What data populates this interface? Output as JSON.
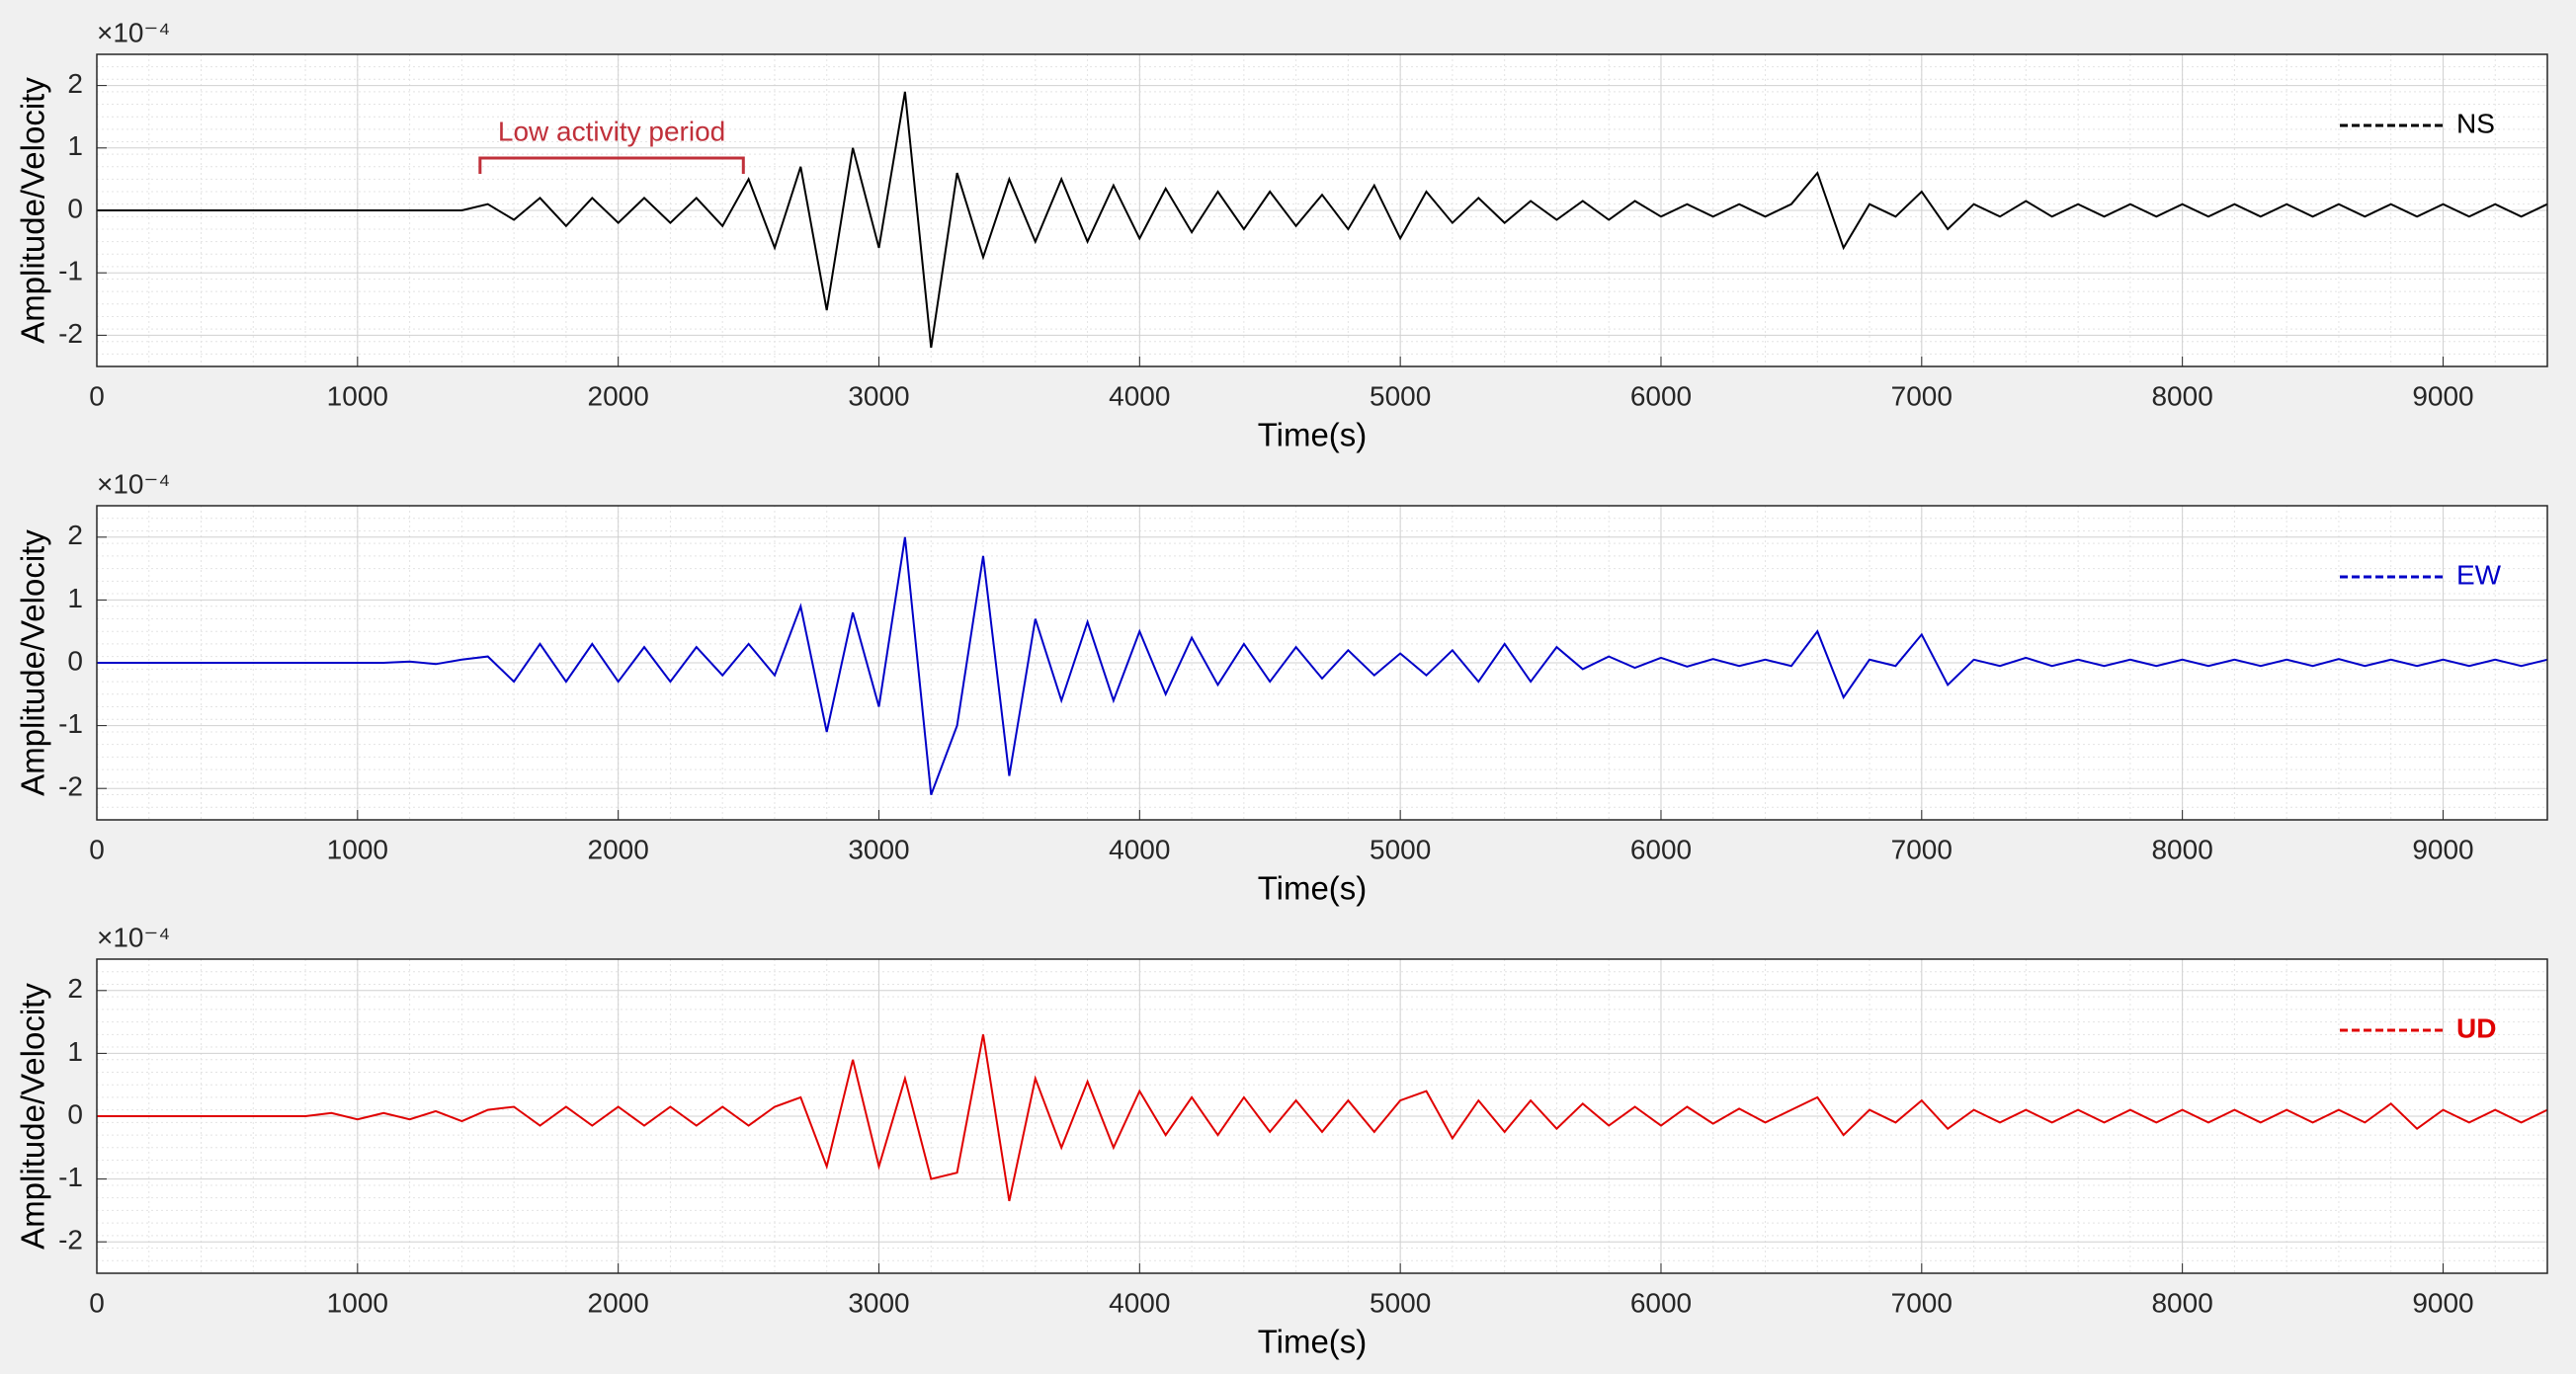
{
  "chart_data": [
    {
      "type": "line",
      "xlabel": "Time(s)",
      "ylabel": "Amplitude/Velocity",
      "y_exponent": "×10⁻⁴",
      "xlim": [
        0,
        9400
      ],
      "ylim": [
        -2.5,
        2.5
      ],
      "xticks": [
        0,
        1000,
        2000,
        3000,
        4000,
        5000,
        6000,
        7000,
        8000,
        9000
      ],
      "yticks": [
        -2,
        -1,
        0,
        1,
        2
      ],
      "grid": true,
      "legend": "upper right",
      "annotation": {
        "text": "Low activity period",
        "x": [
          1470,
          2480
        ]
      },
      "x": [
        0,
        100,
        200,
        300,
        400,
        500,
        600,
        700,
        800,
        900,
        1000,
        1100,
        1200,
        1300,
        1400,
        1500,
        1600,
        1700,
        1800,
        1900,
        2000,
        2100,
        2200,
        2300,
        2400,
        2500,
        2600,
        2700,
        2800,
        2900,
        3000,
        3100,
        3200,
        3300,
        3400,
        3500,
        3600,
        3700,
        3800,
        3900,
        4000,
        4100,
        4200,
        4300,
        4400,
        4500,
        4600,
        4700,
        4800,
        4900,
        5000,
        5100,
        5200,
        5300,
        5400,
        5500,
        5600,
        5700,
        5800,
        5900,
        6000,
        6100,
        6200,
        6300,
        6400,
        6500,
        6600,
        6700,
        6800,
        6900,
        7000,
        7100,
        7200,
        7300,
        7400,
        7500,
        7600,
        7700,
        7800,
        7900,
        8000,
        8100,
        8200,
        8300,
        8400,
        8500,
        8600,
        8700,
        8800,
        8900,
        9000,
        9100,
        9200,
        9300,
        9400
      ],
      "series": [
        {
          "name": "NS",
          "color": "#000000",
          "values": [
            0,
            0,
            0,
            0,
            0,
            0,
            0,
            0,
            0,
            0,
            0,
            0,
            0,
            0,
            0,
            0.1,
            -0.15,
            0.2,
            -0.25,
            0.2,
            -0.2,
            0.2,
            -0.2,
            0.2,
            -0.25,
            0.5,
            -0.6,
            0.7,
            -1.6,
            1.0,
            -0.6,
            1.9,
            -2.2,
            0.6,
            -0.75,
            0.5,
            -0.5,
            0.5,
            -0.5,
            0.4,
            -0.45,
            0.35,
            -0.35,
            0.3,
            -0.3,
            0.3,
            -0.25,
            0.25,
            -0.3,
            0.4,
            -0.45,
            0.3,
            -0.2,
            0.2,
            -0.2,
            0.15,
            -0.15,
            0.15,
            -0.15,
            0.15,
            -0.1,
            0.1,
            -0.1,
            0.1,
            -0.1,
            0.1,
            0.6,
            -0.6,
            0.1,
            -0.1,
            0.3,
            -0.3,
            0.1,
            -0.1,
            0.15,
            -0.1,
            0.1,
            -0.1,
            0.1,
            -0.1,
            0.1,
            -0.1,
            0.1,
            -0.1,
            0.1,
            -0.1,
            0.1,
            -0.1,
            0.1,
            -0.1,
            0.1,
            -0.1,
            0.1,
            -0.1,
            0.1
          ]
        }
      ]
    },
    {
      "type": "line",
      "xlabel": "Time(s)",
      "ylabel": "Amplitude/Velocity",
      "y_exponent": "×10⁻⁴",
      "xlim": [
        0,
        9400
      ],
      "ylim": [
        -2.5,
        2.5
      ],
      "xticks": [
        0,
        1000,
        2000,
        3000,
        4000,
        5000,
        6000,
        7000,
        8000,
        9000
      ],
      "yticks": [
        -2,
        -1,
        0,
        1,
        2
      ],
      "grid": true,
      "legend": "upper right",
      "x": [
        0,
        100,
        200,
        300,
        400,
        500,
        600,
        700,
        800,
        900,
        1000,
        1100,
        1200,
        1300,
        1400,
        1500,
        1600,
        1700,
        1800,
        1900,
        2000,
        2100,
        2200,
        2300,
        2400,
        2500,
        2600,
        2700,
        2800,
        2900,
        3000,
        3100,
        3200,
        3300,
        3400,
        3500,
        3600,
        3700,
        3800,
        3900,
        4000,
        4100,
        4200,
        4300,
        4400,
        4500,
        4600,
        4700,
        4800,
        4900,
        5000,
        5100,
        5200,
        5300,
        5400,
        5500,
        5600,
        5700,
        5800,
        5900,
        6000,
        6100,
        6200,
        6300,
        6400,
        6500,
        6600,
        6700,
        6800,
        6900,
        7000,
        7100,
        7200,
        7300,
        7400,
        7500,
        7600,
        7700,
        7800,
        7900,
        8000,
        8100,
        8200,
        8300,
        8400,
        8500,
        8600,
        8700,
        8800,
        8900,
        9000,
        9100,
        9200,
        9300,
        9400
      ],
      "series": [
        {
          "name": "EW",
          "color": "#0000c8",
          "values": [
            0,
            0,
            0,
            0,
            0,
            0,
            0,
            0,
            0,
            0,
            0,
            0,
            0.02,
            -0.02,
            0.05,
            0.1,
            -0.3,
            0.3,
            -0.3,
            0.3,
            -0.3,
            0.25,
            -0.3,
            0.25,
            -0.2,
            0.3,
            -0.2,
            0.9,
            -1.1,
            0.8,
            -0.7,
            2.0,
            -2.1,
            -1.0,
            1.7,
            -1.8,
            0.7,
            -0.6,
            0.65,
            -0.6,
            0.5,
            -0.5,
            0.4,
            -0.35,
            0.3,
            -0.3,
            0.25,
            -0.25,
            0.2,
            -0.2,
            0.15,
            -0.2,
            0.2,
            -0.3,
            0.3,
            -0.3,
            0.25,
            -0.1,
            0.1,
            -0.08,
            0.08,
            -0.06,
            0.06,
            -0.05,
            0.05,
            -0.05,
            0.5,
            -0.55,
            0.05,
            -0.05,
            0.45,
            -0.35,
            0.05,
            -0.05,
            0.08,
            -0.05,
            0.05,
            -0.05,
            0.05,
            -0.05,
            0.05,
            -0.05,
            0.05,
            -0.05,
            0.05,
            -0.05,
            0.06,
            -0.05,
            0.05,
            -0.05,
            0.05,
            -0.05,
            0.05,
            -0.05,
            0.05
          ]
        }
      ]
    },
    {
      "type": "line",
      "xlabel": "Time(s)",
      "ylabel": "Amplitude/Velocity",
      "y_exponent": "×10⁻⁴",
      "xlim": [
        0,
        9400
      ],
      "ylim": [
        -2.5,
        2.5
      ],
      "xticks": [
        0,
        1000,
        2000,
        3000,
        4000,
        5000,
        6000,
        7000,
        8000,
        9000
      ],
      "yticks": [
        -2,
        -1,
        0,
        1,
        2
      ],
      "grid": true,
      "legend": "upper right",
      "x": [
        0,
        100,
        200,
        300,
        400,
        500,
        600,
        700,
        800,
        900,
        1000,
        1100,
        1200,
        1300,
        1400,
        1500,
        1600,
        1700,
        1800,
        1900,
        2000,
        2100,
        2200,
        2300,
        2400,
        2500,
        2600,
        2700,
        2800,
        2900,
        3000,
        3100,
        3200,
        3300,
        3400,
        3500,
        3600,
        3700,
        3800,
        3900,
        4000,
        4100,
        4200,
        4300,
        4400,
        4500,
        4600,
        4700,
        4800,
        4900,
        5000,
        5100,
        5200,
        5300,
        5400,
        5500,
        5600,
        5700,
        5800,
        5900,
        6000,
        6100,
        6200,
        6300,
        6400,
        6500,
        6600,
        6700,
        6800,
        6900,
        7000,
        7100,
        7200,
        7300,
        7400,
        7500,
        7600,
        7700,
        7800,
        7900,
        8000,
        8100,
        8200,
        8300,
        8400,
        8500,
        8600,
        8700,
        8800,
        8900,
        9000,
        9100,
        9200,
        9300,
        9400
      ],
      "series": [
        {
          "name": "UD",
          "color": "#e00000",
          "values": [
            0,
            0,
            0,
            0,
            0,
            0,
            0,
            0,
            0,
            0.05,
            -0.05,
            0.05,
            -0.05,
            0.08,
            -0.08,
            0.1,
            0.15,
            -0.15,
            0.15,
            -0.15,
            0.15,
            -0.15,
            0.15,
            -0.15,
            0.15,
            -0.15,
            0.15,
            0.3,
            -0.8,
            0.9,
            -0.8,
            0.6,
            -1.0,
            -0.9,
            1.3,
            -1.35,
            0.6,
            -0.5,
            0.55,
            -0.5,
            0.4,
            -0.3,
            0.3,
            -0.3,
            0.3,
            -0.25,
            0.25,
            -0.25,
            0.25,
            -0.25,
            0.25,
            0.4,
            -0.35,
            0.25,
            -0.25,
            0.25,
            -0.2,
            0.2,
            -0.15,
            0.15,
            -0.15,
            0.15,
            -0.12,
            0.12,
            -0.1,
            0.1,
            0.3,
            -0.3,
            0.1,
            -0.1,
            0.25,
            -0.2,
            0.1,
            -0.1,
            0.1,
            -0.1,
            0.1,
            -0.1,
            0.1,
            -0.1,
            0.1,
            -0.1,
            0.1,
            -0.1,
            0.1,
            -0.1,
            0.1,
            -0.1,
            0.2,
            -0.2,
            0.1,
            -0.1,
            0.1,
            -0.1,
            0.1
          ]
        }
      ]
    }
  ]
}
